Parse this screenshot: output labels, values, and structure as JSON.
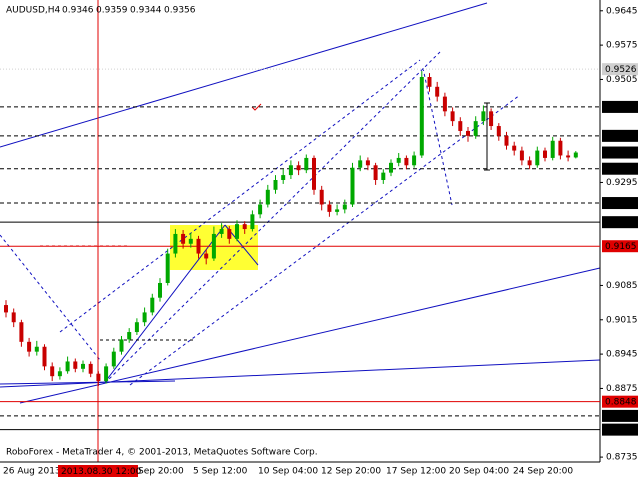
{
  "chart_data": {
    "type": "candlestick",
    "title": "AUDUSD,H4",
    "footer": "RoboForex - MetaTrader 4, © 2001-2013, MetaQuotes Software Corp.",
    "time_labels": [
      "26 Aug 2013",
      "Sep 20:00",
      "5 Sep 12:00",
      "10 Sep 04:00",
      "12 Sep 20:00",
      "17 Sep 12:00",
      "20 Sep 04:00",
      "24 Sep 20:00"
    ],
    "marker_label": "2013.08.30 12:00",
    "up_color": "#00a800",
    "down_color": "#c80000",
    "ylim": [
      0.8725,
      0.9667
    ],
    "yticks": [
      0.9645,
      0.9575,
      0.9505,
      0.9295,
      0.9085,
      0.9015,
      0.8945,
      0.8875,
      0.8735
    ],
    "levels": [
      {
        "value": 0.9526,
        "color": "#d0d0d0",
        "style": "dotted"
      },
      {
        "value": 0.9449,
        "color": "#000000",
        "style": "dashed"
      },
      {
        "value": 0.939,
        "label": "0.9390",
        "color": "#000000",
        "style": "dashed"
      },
      {
        "value": 0.9356,
        "color": "#000000",
        "style": "none"
      },
      {
        "value": 0.9323,
        "color": "#000000",
        "style": "dashed"
      },
      {
        "value": 0.9253,
        "color": "#000000",
        "style": "dashed"
      },
      {
        "value": 0.9214,
        "color": "#000000",
        "style": "solid"
      },
      {
        "value": 0.9165,
        "color": "#e00000",
        "style": "solid"
      },
      {
        "value": 0.8848,
        "color": "#e00000",
        "style": "solid"
      },
      {
        "value": 0.8819,
        "color": "#000000",
        "style": "dashed"
      },
      {
        "value": 0.8791,
        "color": "#000000",
        "style": "solid"
      }
    ],
    "candles": [
      [
        0.9045,
        0.9055,
        0.902,
        0.903
      ],
      [
        0.903,
        0.9038,
        0.9,
        0.901
      ],
      [
        0.901,
        0.9015,
        0.896,
        0.897
      ],
      [
        0.897,
        0.8978,
        0.894,
        0.895
      ],
      [
        0.895,
        0.8972,
        0.8942,
        0.896
      ],
      [
        0.896,
        0.8965,
        0.8912,
        0.892
      ],
      [
        0.892,
        0.8928,
        0.889,
        0.89
      ],
      [
        0.89,
        0.8918,
        0.8893,
        0.891
      ],
      [
        0.891,
        0.894,
        0.8905,
        0.893
      ],
      [
        0.893,
        0.8936,
        0.8908,
        0.8915
      ],
      [
        0.8915,
        0.8932,
        0.8908,
        0.8925
      ],
      [
        0.8925,
        0.893,
        0.8898,
        0.8905
      ],
      [
        0.8905,
        0.891,
        0.888,
        0.889
      ],
      [
        0.889,
        0.8926,
        0.8885,
        0.892
      ],
      [
        0.892,
        0.8958,
        0.8915,
        0.895
      ],
      [
        0.895,
        0.8982,
        0.8944,
        0.8975
      ],
      [
        0.8975,
        0.8998,
        0.8968,
        0.899
      ],
      [
        0.899,
        0.9018,
        0.8984,
        0.901
      ],
      [
        0.901,
        0.904,
        0.9002,
        0.903
      ],
      [
        0.903,
        0.9068,
        0.9024,
        0.906
      ],
      [
        0.906,
        0.91,
        0.9052,
        0.909
      ],
      [
        0.909,
        0.916,
        0.9085,
        0.915
      ],
      [
        0.915,
        0.92,
        0.9142,
        0.919
      ],
      [
        0.919,
        0.9198,
        0.916,
        0.917
      ],
      [
        0.917,
        0.9192,
        0.9162,
        0.918
      ],
      [
        0.918,
        0.9186,
        0.914,
        0.915
      ],
      [
        0.915,
        0.9158,
        0.9128,
        0.914
      ],
      [
        0.914,
        0.9205,
        0.9135,
        0.919
      ],
      [
        0.919,
        0.9212,
        0.9182,
        0.92
      ],
      [
        0.92,
        0.9206,
        0.917,
        0.918
      ],
      [
        0.918,
        0.9218,
        0.9175,
        0.921
      ],
      [
        0.921,
        0.9216,
        0.919,
        0.92
      ],
      [
        0.92,
        0.9238,
        0.9195,
        0.923
      ],
      [
        0.923,
        0.926,
        0.9222,
        0.925
      ],
      [
        0.925,
        0.929,
        0.9244,
        0.928
      ],
      [
        0.928,
        0.931,
        0.9272,
        0.93
      ],
      [
        0.93,
        0.9322,
        0.9292,
        0.931
      ],
      [
        0.931,
        0.934,
        0.9302,
        0.933
      ],
      [
        0.933,
        0.9338,
        0.931,
        0.932
      ],
      [
        0.932,
        0.9352,
        0.9314,
        0.9345
      ],
      [
        0.9345,
        0.935,
        0.927,
        0.928
      ],
      [
        0.928,
        0.9288,
        0.9238,
        0.925
      ],
      [
        0.925,
        0.9258,
        0.9225,
        0.9235
      ],
      [
        0.9235,
        0.925,
        0.9228,
        0.924
      ],
      [
        0.924,
        0.926,
        0.9232,
        0.925
      ],
      [
        0.925,
        0.9335,
        0.9245,
        0.9325
      ],
      [
        0.9325,
        0.935,
        0.9318,
        0.934
      ],
      [
        0.934,
        0.9346,
        0.932,
        0.933
      ],
      [
        0.933,
        0.9335,
        0.929,
        0.93
      ],
      [
        0.93,
        0.9322,
        0.9292,
        0.9315
      ],
      [
        0.9315,
        0.9342,
        0.9308,
        0.9335
      ],
      [
        0.9335,
        0.9355,
        0.9328,
        0.9345
      ],
      [
        0.9345,
        0.935,
        0.9322,
        0.933
      ],
      [
        0.933,
        0.9358,
        0.9325,
        0.935
      ],
      [
        0.935,
        0.9522,
        0.9345,
        0.951
      ],
      [
        0.951,
        0.9518,
        0.948,
        0.949
      ],
      [
        0.949,
        0.95,
        0.946,
        0.947
      ],
      [
        0.947,
        0.9478,
        0.943,
        0.944
      ],
      [
        0.944,
        0.9448,
        0.941,
        0.942
      ],
      [
        0.942,
        0.9428,
        0.939,
        0.94
      ],
      [
        0.94,
        0.9408,
        0.9378,
        0.939
      ],
      [
        0.939,
        0.943,
        0.9384,
        0.942
      ],
      [
        0.942,
        0.9452,
        0.9412,
        0.944
      ],
      [
        0.944,
        0.9446,
        0.9402,
        0.941
      ],
      [
        0.941,
        0.9416,
        0.938,
        0.939
      ],
      [
        0.939,
        0.9398,
        0.9362,
        0.937
      ],
      [
        0.937,
        0.9378,
        0.935,
        0.936
      ],
      [
        0.936,
        0.9368,
        0.933,
        0.934
      ],
      [
        0.934,
        0.9348,
        0.9322,
        0.933
      ],
      [
        0.933,
        0.9368,
        0.9325,
        0.936
      ],
      [
        0.936,
        0.9366,
        0.9338,
        0.9345
      ],
      [
        0.9345,
        0.9388,
        0.934,
        0.938
      ],
      [
        0.938,
        0.9386,
        0.9342,
        0.935
      ],
      [
        0.935,
        0.936,
        0.9338,
        0.9346
      ],
      [
        0.9346,
        0.9359,
        0.9344,
        0.9356
      ]
    ]
  }
}
